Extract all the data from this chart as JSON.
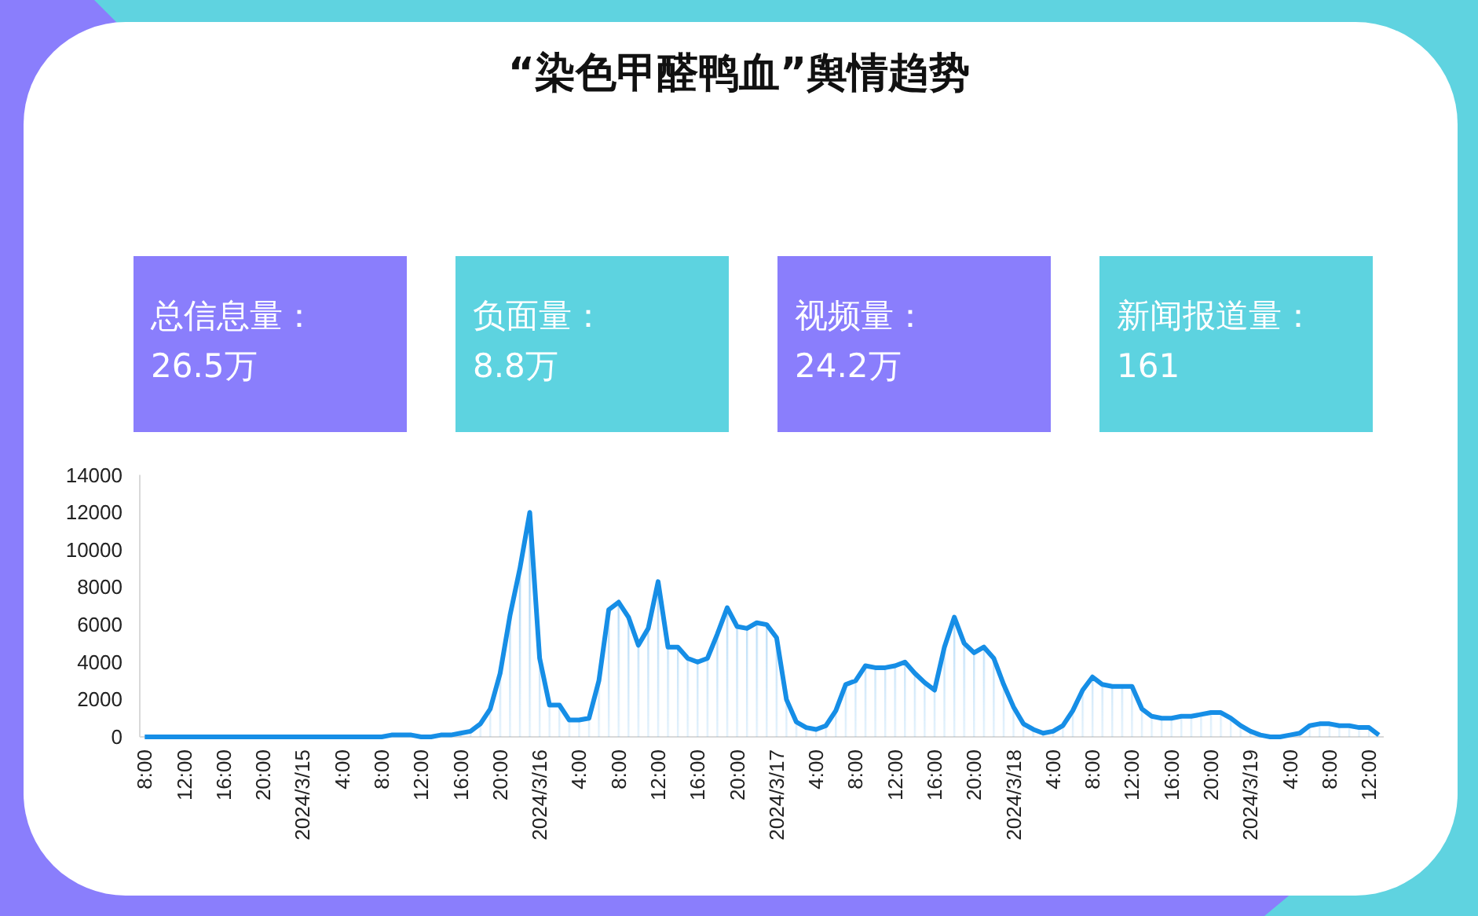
{
  "chart_data": [
    {
      "type": "area",
      "title": "“染色甲醛鸭血”舆情趋势",
      "categories": [
        "8:00",
        null,
        null,
        null,
        "12:00",
        null,
        null,
        null,
        "16:00",
        null,
        null,
        null,
        "20:00",
        null,
        null,
        null,
        "2024/3/15",
        null,
        null,
        null,
        "4:00",
        null,
        null,
        null,
        "8:00",
        null,
        null,
        null,
        "12:00",
        null,
        null,
        null,
        "16:00",
        null,
        null,
        null,
        "20:00",
        null,
        null,
        null,
        "2024/3/16",
        null,
        null,
        null,
        "4:00",
        null,
        null,
        null,
        "8:00",
        null,
        null,
        null,
        "12:00",
        null,
        null,
        null,
        "16:00",
        null,
        null,
        null,
        "20:00",
        null,
        null,
        null,
        "2024/3/17",
        null,
        null,
        null,
        "4:00",
        null,
        null,
        null,
        "8:00",
        null,
        null,
        null,
        "12:00",
        null,
        null,
        null,
        "16:00",
        null,
        null,
        null,
        "20:00",
        null,
        null,
        null,
        "2024/3/18",
        null,
        null,
        null,
        "4:00",
        null,
        null,
        null,
        "8:00",
        null,
        null,
        null,
        "12:00",
        null,
        null,
        null,
        "16:00",
        null,
        null,
        null,
        "20:00",
        null,
        null,
        null,
        "2024/3/19",
        null,
        null,
        null,
        "4:00",
        null,
        null,
        null,
        "8:00",
        null,
        null,
        null,
        "12:00",
        null
      ],
      "series": [
        {
          "color": "#168ee6",
          "values": [
            0,
            0,
            0,
            0,
            0,
            0,
            0,
            0,
            0,
            0,
            0,
            0,
            0,
            0,
            0,
            0,
            0,
            0,
            0,
            0,
            0,
            0,
            0,
            0,
            0,
            100,
            100,
            100,
            0,
            0,
            100,
            100,
            200,
            300,
            700,
            1500,
            3400,
            6500,
            9000,
            12000,
            4200,
            1700,
            1700,
            900,
            900,
            1000,
            3000,
            6800,
            7200,
            6400,
            4900,
            5800,
            8300,
            4800,
            4800,
            4200,
            4000,
            4200,
            5500,
            6900,
            5900,
            5800,
            6100,
            6000,
            5300,
            2000,
            800,
            500,
            400,
            600,
            1400,
            2800,
            3000,
            3800,
            3700,
            3700,
            3800,
            4000,
            3400,
            2900,
            2500,
            4800,
            6400,
            5000,
            4500,
            4800,
            4200,
            2800,
            1600,
            700,
            400,
            200,
            300,
            600,
            1400,
            2500,
            3200,
            2800,
            2700,
            2700,
            2700,
            1500,
            1100,
            1000,
            1000,
            1100,
            1100,
            1200,
            1300,
            1300,
            1000,
            600,
            300,
            100,
            0,
            0,
            100,
            200,
            600,
            700,
            700,
            600,
            600,
            500,
            500,
            100
          ]
        }
      ],
      "ylim": [
        0,
        14000
      ],
      "yticks": [
        0,
        2000,
        4000,
        6000,
        8000,
        10000,
        12000,
        14000
      ]
    },
    {
      "type": "other",
      "title": "总信息量：",
      "annotations": [
        "26.5万"
      ]
    },
    {
      "type": "other",
      "title": "负面量：",
      "annotations": [
        "8.8万"
      ]
    },
    {
      "type": "other",
      "title": "视频量：",
      "annotations": [
        "24.2万"
      ]
    },
    {
      "type": "other",
      "title": "新闻报道量：",
      "annotations": [
        "161"
      ]
    }
  ]
}
